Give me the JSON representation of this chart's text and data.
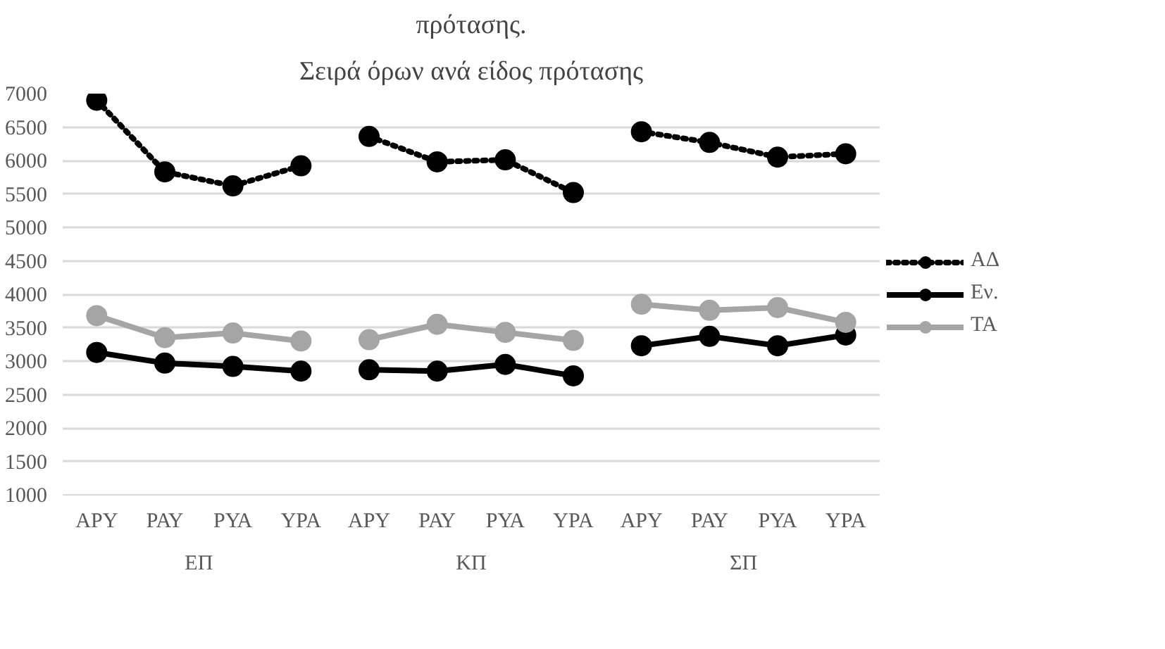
{
  "chart_data": {
    "type": "line",
    "title": "Σειρά όρων ανά είδος πρότασης",
    "annotations": [
      "πρότασης.",
      "ΕΠ",
      "ΚΠ",
      "ΣΠ"
    ],
    "categories": [
      "ΑΡΥ",
      "ΡΑΥ",
      "ΡΥΑ",
      "ΥΡΑ",
      "ΑΡΥ",
      "ΡΑΥ",
      "ΡΥΑ",
      "ΥΡΑ",
      "ΑΡΥ",
      "ΡΑΥ",
      "ΡΥΑ",
      "ΥΡΑ"
    ],
    "series": [
      {
        "name": "ΑΔ",
        "color": "#000000",
        "line_style": "dotted",
        "values": [
          6900,
          5830,
          5620,
          5920,
          6360,
          5980,
          6010,
          5520,
          6430,
          6270,
          6050,
          6100
        ]
      },
      {
        "name": "Εν.",
        "color": "#000000",
        "line_style": "solid",
        "values": [
          3130,
          2970,
          2920,
          2850,
          2870,
          2850,
          2950,
          2780,
          3230,
          3370,
          3230,
          3390
        ]
      },
      {
        "name": "ΤΑ",
        "color": "#a5a5a5",
        "line_style": "solid",
        "values": [
          3680,
          3350,
          3420,
          3300,
          3320,
          3550,
          3430,
          3310,
          3850,
          3760,
          3800,
          3580
        ]
      }
    ],
    "ylim": [
      1000,
      7000
    ],
    "yticks": [
      1000,
      1500,
      2000,
      2500,
      3000,
      3500,
      4000,
      4500,
      5000,
      5500,
      6000,
      6500,
      7000
    ],
    "grid": "y",
    "legend": "right",
    "marker": "circle"
  }
}
